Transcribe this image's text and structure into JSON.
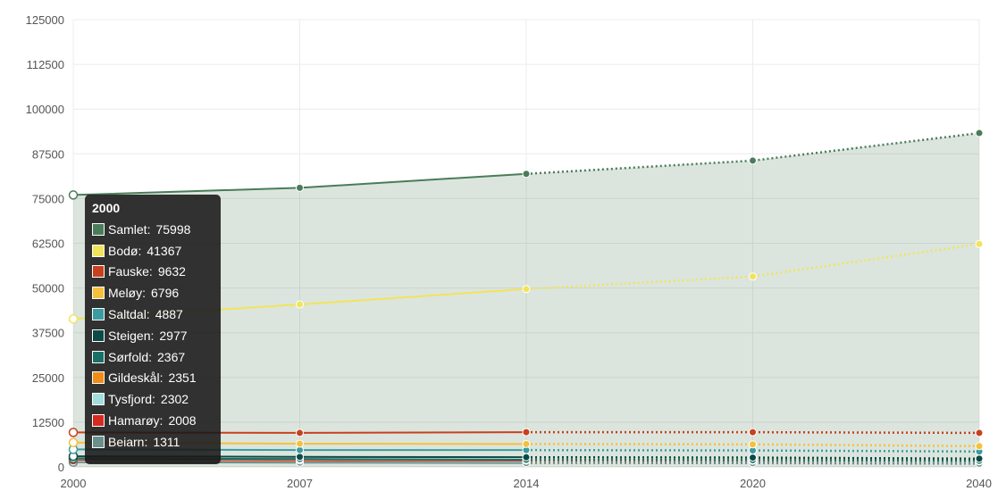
{
  "chart_data": {
    "type": "line",
    "categories": [
      "2000",
      "2007",
      "2014",
      "2020",
      "2040"
    ],
    "ylim": [
      0,
      125000
    ],
    "yticks": [
      0,
      12500,
      25000,
      37500,
      50000,
      62500,
      75000,
      87500,
      100000,
      112500,
      125000
    ],
    "grid": true,
    "solid_until_index": 2,
    "filled_series": "Samlet",
    "series": [
      {
        "name": "Samlet",
        "color": "#4a7c59",
        "values": [
          75998,
          78000,
          81900,
          85600,
          93300
        ]
      },
      {
        "name": "Bodø",
        "color": "#f2e35a",
        "values": [
          41367,
          45400,
          49700,
          53200,
          62300
        ]
      },
      {
        "name": "Fauske",
        "color": "#c8401e",
        "values": [
          9632,
          9500,
          9700,
          9700,
          9500
        ]
      },
      {
        "name": "Meløy",
        "color": "#f5c13a",
        "values": [
          6796,
          6500,
          6400,
          6300,
          5800
        ]
      },
      {
        "name": "Saltdal",
        "color": "#3a9ba0",
        "values": [
          4887,
          4700,
          4700,
          4600,
          4300
        ]
      },
      {
        "name": "Steigen",
        "color": "#0d4a45",
        "values": [
          2977,
          2800,
          2700,
          2600,
          2300
        ]
      },
      {
        "name": "Sørfold",
        "color": "#1a7068",
        "values": [
          2367,
          2200,
          2000,
          1900,
          1700
        ]
      },
      {
        "name": "Gildeskål",
        "color": "#ef8c1a",
        "values": [
          2351,
          2100,
          2000,
          2000,
          1800
        ]
      },
      {
        "name": "Tysfjord",
        "color": "#a3dcdc",
        "values": [
          2302,
          2100,
          1950,
          1850,
          1600
        ]
      },
      {
        "name": "Hamarøy",
        "color": "#d42a20",
        "values": [
          2008,
          1800,
          1750,
          1700,
          1550
        ]
      },
      {
        "name": "Beiarn",
        "color": "#6b8f8b",
        "values": [
          1311,
          1200,
          1100,
          1050,
          900
        ]
      }
    ],
    "tooltip": {
      "title": "2000",
      "items": [
        {
          "label": "Samlet:",
          "value": "75998"
        },
        {
          "label": "Bodø:",
          "value": "41367"
        },
        {
          "label": "Fauske:",
          "value": "9632"
        },
        {
          "label": "Meløy:",
          "value": "6796"
        },
        {
          "label": "Saltdal:",
          "value": "4887"
        },
        {
          "label": "Steigen:",
          "value": "2977"
        },
        {
          "label": "Sørfold:",
          "value": "2367"
        },
        {
          "label": "Gildeskål:",
          "value": "2351"
        },
        {
          "label": "Tysfjord:",
          "value": "2302"
        },
        {
          "label": "Hamarøy:",
          "value": "2008"
        },
        {
          "label": "Beiarn:",
          "value": "1311"
        }
      ]
    }
  }
}
